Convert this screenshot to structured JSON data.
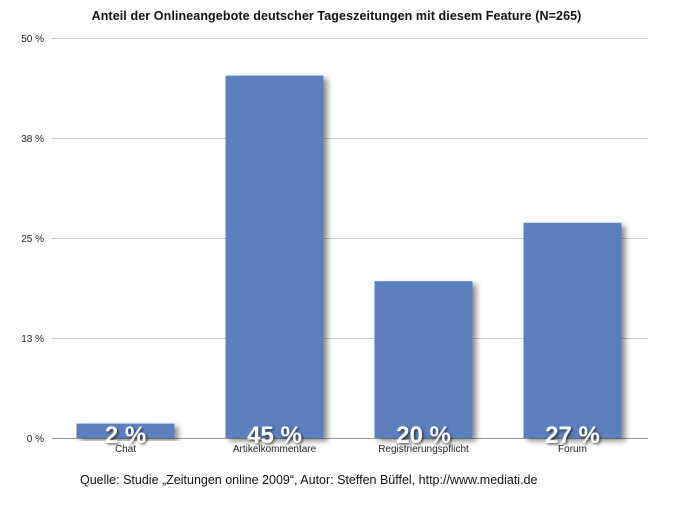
{
  "chart_data": {
    "type": "bar",
    "title": "Anteil der Onlineangebote deutscher Tageszeitungen mit diesem Feature (N=265)",
    "categories": [
      "Chat",
      "Artikelkommentare",
      "Registrierungspflicht",
      "Forum"
    ],
    "values": [
      1.8,
      45.3,
      19.6,
      26.9
    ],
    "data_labels": [
      "2 %",
      "45 %",
      "20 %",
      "27 %"
    ],
    "yticks": [
      0,
      12.5,
      25,
      37.5,
      50
    ],
    "ytick_labels": [
      "0 %",
      "13 %",
      "25 %",
      "38 %",
      "50 %"
    ],
    "ylim": [
      0,
      50
    ],
    "grid": true,
    "bar_color": "#5b7fbd",
    "source": "Quelle: Studie „Zeitungen online 2009“, Autor: Steffen Büffel, http://www.mediati.de"
  }
}
